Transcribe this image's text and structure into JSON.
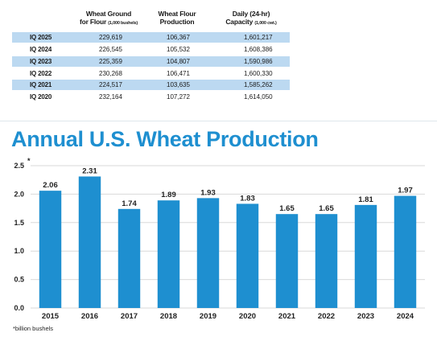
{
  "table": {
    "headers": {
      "col1_line1": "Wheat Ground",
      "col1_line2": "for Flour",
      "col1_unit": "(1,000 bushels)",
      "col2_line1": "Wheat Flour",
      "col2_line2": "Production",
      "col3_line1": "Daily (24-hr)",
      "col3_line2": "Capacity",
      "col3_unit": "(1,000 cwt.)"
    },
    "rows": [
      {
        "period": "IQ 2025",
        "wheat_ground": "229,619",
        "flour_production": "106,367",
        "daily_capacity": "1,601,217"
      },
      {
        "period": "IQ 2024",
        "wheat_ground": "226,545",
        "flour_production": "105,532",
        "daily_capacity": "1,608,386"
      },
      {
        "period": "IQ 2023",
        "wheat_ground": "225,359",
        "flour_production": "104,807",
        "daily_capacity": "1,590,986"
      },
      {
        "period": "IQ 2022",
        "wheat_ground": "230,268",
        "flour_production": "106,471",
        "daily_capacity": "1,600,330"
      },
      {
        "period": "IQ 2021",
        "wheat_ground": "224,517",
        "flour_production": "103,635",
        "daily_capacity": "1,585,262"
      },
      {
        "period": "IQ 2020",
        "wheat_ground": "232,164",
        "flour_production": "107,272",
        "daily_capacity": "1,614,050"
      }
    ],
    "shade_color": "#bcd9f1"
  },
  "chart_data": {
    "type": "bar",
    "title": "Annual U.S. Wheat Production",
    "categories": [
      "2015",
      "2016",
      "2017",
      "2018",
      "2019",
      "2020",
      "2021",
      "2022",
      "2023",
      "2024"
    ],
    "values": [
      2.06,
      2.31,
      1.74,
      1.89,
      1.93,
      1.83,
      1.65,
      1.65,
      1.81,
      1.97
    ],
    "value_labels": [
      "2.06",
      "2.31",
      "1.74",
      "1.89",
      "1.93",
      "1.83",
      "1.65",
      "1.65",
      "1.81",
      "1.97"
    ],
    "ylim": [
      0,
      2.5
    ],
    "yticks": [
      "0.0",
      "0.5",
      "1.0",
      "1.5",
      "2.0",
      "2.5"
    ],
    "y_top_marker": "*",
    "grid": true,
    "legend": "none",
    "bar_color": "#1e8fd0",
    "grid_color": "#d9d9d9",
    "footnote": "*billion bushels"
  }
}
